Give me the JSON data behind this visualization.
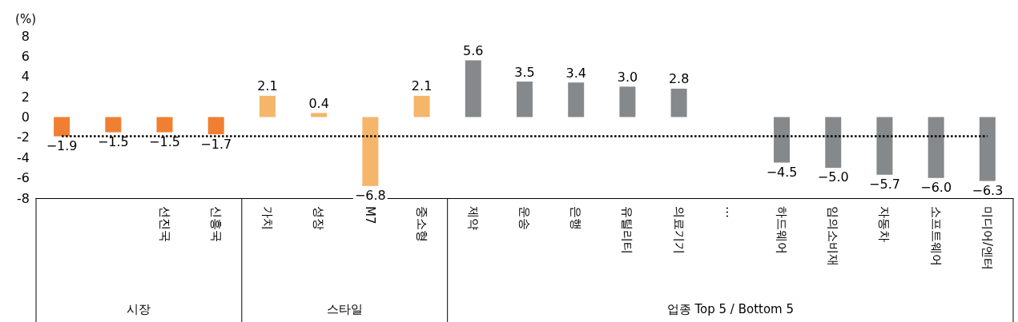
{
  "chart_data": {
    "type": "bar",
    "ylabel": "(%)",
    "categories": [
      null,
      null,
      "선진국",
      "신흥국",
      "가치",
      "성장",
      "M7",
      "중소형",
      "제약",
      "운송",
      "은행",
      "유틸리티",
      "의료기기",
      "…",
      "하드웨어",
      "임의소비재",
      "자동차",
      "소프트웨어",
      "미디어/엔터"
    ],
    "values": [
      -1.9,
      -1.5,
      -1.5,
      -1.7,
      2.1,
      0.4,
      -6.8,
      2.1,
      5.6,
      3.5,
      3.4,
      3.0,
      2.8,
      null,
      -4.5,
      -5.0,
      -5.7,
      -6.0,
      -6.3
    ],
    "value_labels": [
      "−1.9",
      "−1.5",
      "−1.5",
      "−1.7",
      "2.1",
      "0.4",
      "−6.8",
      "2.1",
      "5.6",
      "3.5",
      "3.4",
      "3.0",
      "2.8",
      null,
      "−4.5",
      "−5.0",
      "−5.7",
      "−6.0",
      "−6.3"
    ],
    "colors": [
      "#f07f32",
      "#f07f32",
      "#f07f32",
      "#f07f32",
      "#f5b56a",
      "#f5b56a",
      "#f5b56a",
      "#f5b56a",
      "#86898c",
      "#86898c",
      "#86898c",
      "#86898c",
      "#86898c",
      "#86898c",
      "#86898c",
      "#86898c",
      "#86898c",
      "#86898c",
      "#86898c"
    ],
    "ylim": [
      -8,
      8
    ],
    "yticks": [
      -8,
      -6,
      -4,
      -2,
      0,
      2,
      4,
      6,
      8
    ],
    "ref_lines": [
      {
        "axis": "y",
        "value": -1.9,
        "color": "#000000",
        "line_style": "dotted"
      }
    ],
    "annotations": [
      "시장",
      "스타일",
      "업종 Top 5 / Bottom 5"
    ],
    "grid": false
  }
}
